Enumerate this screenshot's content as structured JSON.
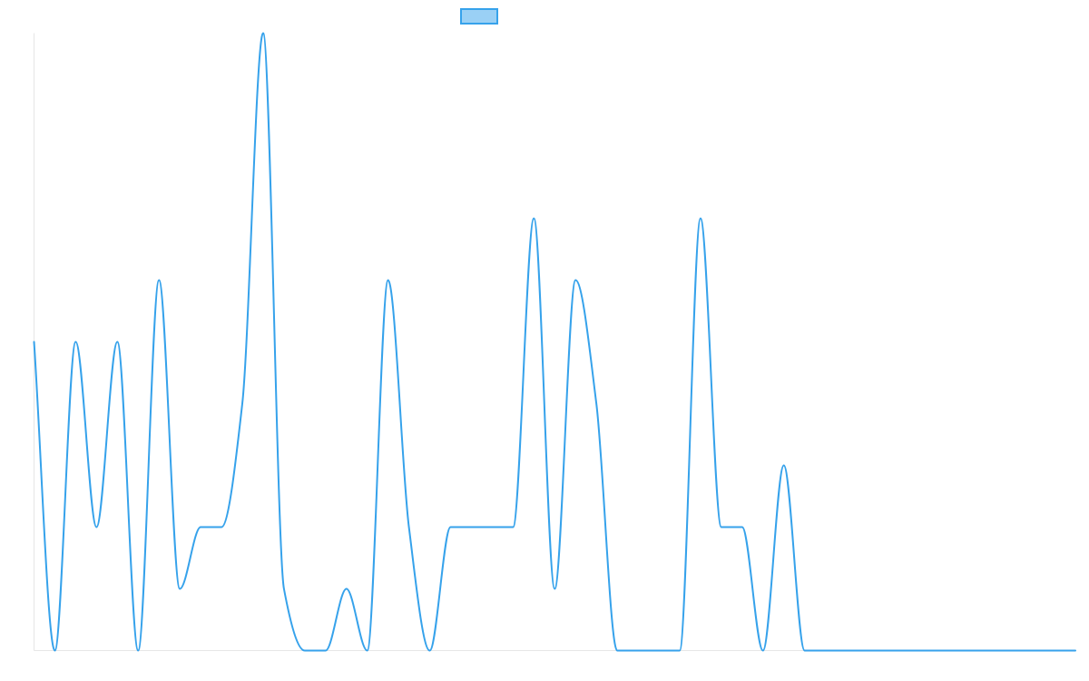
{
  "chart_data": {
    "type": "line",
    "title": "",
    "xlabel": "",
    "ylabel": "",
    "grid": false,
    "legend_position": "top-center",
    "colors": {
      "series_line": "#36a2eb",
      "series_fill": "#9ad0f5",
      "axis_line": "#e6e6e6"
    },
    "ylim": [
      0,
      10
    ],
    "series": [
      {
        "name": "",
        "values": [
          5,
          0,
          5,
          2,
          5,
          0,
          6,
          1,
          2,
          2,
          4,
          10,
          1,
          0,
          0,
          1,
          0,
          6,
          2,
          0,
          2,
          2,
          2,
          2,
          7,
          1,
          6,
          4,
          0,
          0,
          0,
          0,
          7,
          2,
          2,
          0,
          3,
          0,
          0,
          0,
          0,
          0,
          0,
          0,
          0,
          0,
          0,
          0,
          0,
          0,
          0
        ]
      }
    ]
  }
}
